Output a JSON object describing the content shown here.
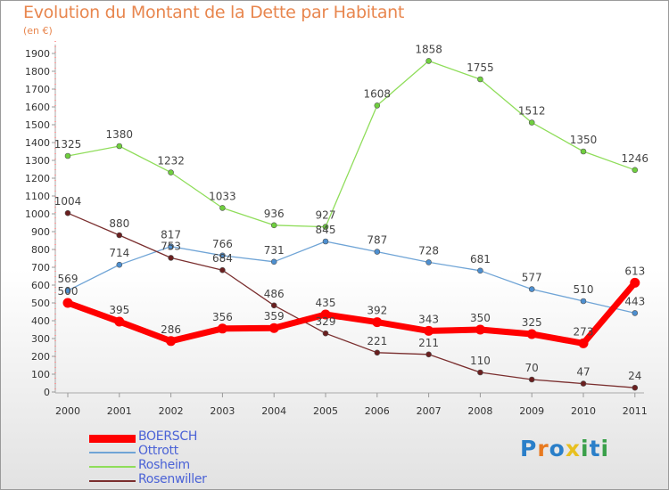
{
  "title": "Evolution du Montant de la Dette par Habitant",
  "subtitle": "(en €)",
  "logo": {
    "letters": [
      "P",
      "r",
      "o",
      "x",
      "i",
      "t",
      "i"
    ],
    "colors": [
      "#2a7fc9",
      "#e87a20",
      "#2a7fc9",
      "#e8c020",
      "#3aa04a",
      "#2a7fc9",
      "#3aa04a"
    ]
  },
  "chart_data": {
    "type": "line",
    "x": [
      "2000",
      "2001",
      "2002",
      "2003",
      "2004",
      "2005",
      "2006",
      "2007",
      "2008",
      "2009",
      "2010",
      "2011"
    ],
    "ylim": [
      0,
      1900
    ],
    "yticks": [
      0,
      100,
      200,
      300,
      400,
      500,
      600,
      700,
      800,
      900,
      1000,
      1100,
      1200,
      1300,
      1400,
      1500,
      1600,
      1700,
      1800,
      1900
    ],
    "grid": false,
    "legend_position": "bottom-left",
    "series": [
      {
        "name": "Rosheim",
        "color": "#8fdd5a",
        "marker": "#6fcf3e",
        "width": 1.3,
        "values": [
          1325,
          1380,
          1232,
          1033,
          936,
          927,
          1608,
          1858,
          1755,
          1512,
          1350,
          1246
        ]
      },
      {
        "name": "Ottrott",
        "color": "#6fa4d6",
        "marker": "#4d8fd0",
        "width": 1.3,
        "values": [
          569,
          714,
          817,
          766,
          731,
          845,
          787,
          728,
          681,
          577,
          510,
          443
        ]
      },
      {
        "name": "Rosenwiller",
        "color": "#7a2e2e",
        "marker": "#6a1f1f",
        "width": 1.3,
        "values": [
          1004,
          880,
          753,
          684,
          486,
          329,
          221,
          211,
          110,
          70,
          47,
          24
        ]
      },
      {
        "name": "BOERSCH",
        "color": "#ff0000",
        "marker": "#ff0000",
        "width": 7,
        "values": [
          500,
          395,
          286,
          356,
          359,
          435,
          392,
          343,
          350,
          325,
          273,
          613
        ]
      }
    ],
    "legend": [
      {
        "name": "BOERSCH",
        "color": "#ff0000",
        "text_color": "#4a62d6",
        "thick": true
      },
      {
        "name": "Ottrott",
        "color": "#6fa4d6",
        "text_color": "#4a62d6",
        "thick": false
      },
      {
        "name": "Rosheim",
        "color": "#8fdd5a",
        "text_color": "#4a62d6",
        "thick": false
      },
      {
        "name": "Rosenwiller",
        "color": "#7a2e2e",
        "text_color": "#4a62d6",
        "thick": false
      }
    ]
  }
}
